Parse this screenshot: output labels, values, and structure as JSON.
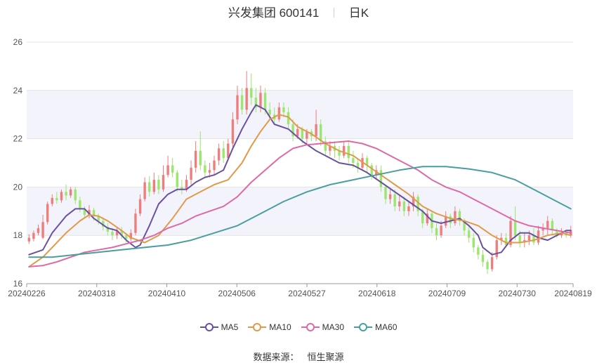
{
  "header": {
    "title": "兴发集团 600141",
    "period": "日K"
  },
  "source": {
    "label": "数据来源：",
    "value": "恒生聚源"
  },
  "colors": {
    "up": "#ee7d7d",
    "down": "#9ae66e",
    "band": "#f3f4fb",
    "grid": "#e4e4e4"
  },
  "chart_data": {
    "type": "candlestick",
    "ylim": [
      16,
      26
    ],
    "yticks": [
      "16",
      "18",
      "20",
      "22",
      "24",
      "26"
    ],
    "xticks": [
      "20240226",
      "20240318",
      "20240410",
      "20240506",
      "20240527",
      "20240618",
      "20240709",
      "20240730",
      "20240819"
    ],
    "n_days": 118,
    "xtick_idx": [
      0,
      15,
      30,
      45,
      60,
      75,
      90,
      105,
      117
    ],
    "legend": [
      {
        "name": "MA5",
        "color": "#6a50a0"
      },
      {
        "name": "MA10",
        "color": "#e09a4a"
      },
      {
        "name": "MA30",
        "color": "#dc6aa6"
      },
      {
        "name": "MA60",
        "color": "#4a9e9e"
      }
    ],
    "candles": [
      [
        17.75,
        17.9,
        17.65,
        18.05
      ],
      [
        17.85,
        18.1,
        17.75,
        18.2
      ],
      [
        18.1,
        18.3,
        18.0,
        18.45
      ],
      [
        17.9,
        18.55,
        17.85,
        18.85
      ],
      [
        18.55,
        19.3,
        18.45,
        19.4
      ],
      [
        19.3,
        19.55,
        19.2,
        19.7
      ],
      [
        19.55,
        19.45,
        19.3,
        19.8
      ],
      [
        19.45,
        19.8,
        19.35,
        19.9
      ],
      [
        19.8,
        19.65,
        19.45,
        20.1
      ],
      [
        19.65,
        19.9,
        19.55,
        20.0
      ],
      [
        19.9,
        19.45,
        19.3,
        20.0
      ],
      [
        19.45,
        19.1,
        18.95,
        19.6
      ],
      [
        19.1,
        18.85,
        18.75,
        19.2
      ],
      [
        18.85,
        19.05,
        18.7,
        19.25
      ],
      [
        19.05,
        18.8,
        18.6,
        19.15
      ],
      [
        18.8,
        18.6,
        18.45,
        18.9
      ],
      [
        18.6,
        18.35,
        18.2,
        18.75
      ],
      [
        18.35,
        18.15,
        18.0,
        18.5
      ],
      [
        18.15,
        18.0,
        17.8,
        18.3
      ],
      [
        18.0,
        18.2,
        17.85,
        18.35
      ],
      [
        18.2,
        18.0,
        17.85,
        18.35
      ],
      [
        18.0,
        17.85,
        17.7,
        18.1
      ],
      [
        17.85,
        18.1,
        17.75,
        18.25
      ],
      [
        18.1,
        18.9,
        18.0,
        19.1
      ],
      [
        18.9,
        19.5,
        18.8,
        19.7
      ],
      [
        19.5,
        20.2,
        19.4,
        20.4
      ],
      [
        20.2,
        19.8,
        19.6,
        20.45
      ],
      [
        19.8,
        20.3,
        19.7,
        20.6
      ],
      [
        20.3,
        19.9,
        19.7,
        20.5
      ],
      [
        19.9,
        20.5,
        19.8,
        20.9
      ],
      [
        20.5,
        20.9,
        20.4,
        21.3
      ],
      [
        20.9,
        20.6,
        20.4,
        21.2
      ],
      [
        20.6,
        20.0,
        19.8,
        20.7
      ],
      [
        20.0,
        19.9,
        19.7,
        20.3
      ],
      [
        19.9,
        20.3,
        19.8,
        20.5
      ],
      [
        20.3,
        20.8,
        20.1,
        21.1
      ],
      [
        20.8,
        21.5,
        20.6,
        21.9
      ],
      [
        21.5,
        20.9,
        20.7,
        22.3
      ],
      [
        20.9,
        20.6,
        20.4,
        21.1
      ],
      [
        20.6,
        20.7,
        20.4,
        21.0
      ],
      [
        20.7,
        21.1,
        20.5,
        21.3
      ],
      [
        21.1,
        21.6,
        20.9,
        21.8
      ],
      [
        21.6,
        21.2,
        21.0,
        21.9
      ],
      [
        21.2,
        21.8,
        21.1,
        22.0
      ],
      [
        21.8,
        22.8,
        21.6,
        23.1
      ],
      [
        22.8,
        23.8,
        22.6,
        24.2
      ],
      [
        23.8,
        23.2,
        23.0,
        24.1
      ],
      [
        23.2,
        24.1,
        23.0,
        24.8
      ],
      [
        24.1,
        23.7,
        23.4,
        24.7
      ],
      [
        23.7,
        23.3,
        23.1,
        24.1
      ],
      [
        23.3,
        23.9,
        23.1,
        24.2
      ],
      [
        23.9,
        23.2,
        23.0,
        24.1
      ],
      [
        23.2,
        23.0,
        22.8,
        23.5
      ],
      [
        23.0,
        22.8,
        22.6,
        23.3
      ],
      [
        22.8,
        23.3,
        22.7,
        23.5
      ],
      [
        23.3,
        23.1,
        22.9,
        23.5
      ],
      [
        23.1,
        22.6,
        22.4,
        23.3
      ],
      [
        22.6,
        22.1,
        21.9,
        22.8
      ],
      [
        22.1,
        22.4,
        22.0,
        22.6
      ],
      [
        22.4,
        22.0,
        21.8,
        22.5
      ],
      [
        22.0,
        22.3,
        21.8,
        22.4
      ],
      [
        22.3,
        22.1,
        21.9,
        22.4
      ],
      [
        22.1,
        22.6,
        21.9,
        23.2
      ],
      [
        22.6,
        21.9,
        21.7,
        22.8
      ],
      [
        21.9,
        21.5,
        21.3,
        22.1
      ],
      [
        21.5,
        21.7,
        21.3,
        21.9
      ],
      [
        21.7,
        21.5,
        21.2,
        21.9
      ],
      [
        21.5,
        21.3,
        21.1,
        21.7
      ],
      [
        21.3,
        21.7,
        21.2,
        21.9
      ],
      [
        21.7,
        21.2,
        21.0,
        21.9
      ],
      [
        21.2,
        21.0,
        20.8,
        21.5
      ],
      [
        21.0,
        20.8,
        20.6,
        21.2
      ],
      [
        20.8,
        21.2,
        20.7,
        21.4
      ],
      [
        21.2,
        20.9,
        20.6,
        21.3
      ],
      [
        20.9,
        20.5,
        20.3,
        21.0
      ],
      [
        20.5,
        20.7,
        20.3,
        20.9
      ],
      [
        20.7,
        20.0,
        19.8,
        20.9
      ],
      [
        20.0,
        19.5,
        19.3,
        20.1
      ],
      [
        19.5,
        19.7,
        19.3,
        19.9
      ],
      [
        19.7,
        19.2,
        19.0,
        19.9
      ],
      [
        19.2,
        19.4,
        19.0,
        19.7
      ],
      [
        19.4,
        19.0,
        18.8,
        19.6
      ],
      [
        19.0,
        19.2,
        18.8,
        19.4
      ],
      [
        19.2,
        19.6,
        19.0,
        19.8
      ],
      [
        19.6,
        19.0,
        18.8,
        19.7
      ],
      [
        19.0,
        18.5,
        18.3,
        19.1
      ],
      [
        18.5,
        18.9,
        18.4,
        19.1
      ],
      [
        18.9,
        18.3,
        18.1,
        19.0
      ],
      [
        18.3,
        18.0,
        17.8,
        18.5
      ],
      [
        18.0,
        18.4,
        17.9,
        18.6
      ],
      [
        18.4,
        18.8,
        18.3,
        19.0
      ],
      [
        18.8,
        18.5,
        18.3,
        18.9
      ],
      [
        18.5,
        19.0,
        18.4,
        19.2
      ],
      [
        19.0,
        18.6,
        18.4,
        19.1
      ],
      [
        18.6,
        18.2,
        18.0,
        18.7
      ],
      [
        18.2,
        17.9,
        17.7,
        18.4
      ],
      [
        17.9,
        17.5,
        17.3,
        18.1
      ],
      [
        17.5,
        17.2,
        17.0,
        17.6
      ],
      [
        17.2,
        16.9,
        16.7,
        17.4
      ],
      [
        16.9,
        16.6,
        16.4,
        17.0
      ],
      [
        16.6,
        17.1,
        16.5,
        17.3
      ],
      [
        17.1,
        17.8,
        17.0,
        18.0
      ],
      [
        17.8,
        17.9,
        17.6,
        18.1
      ],
      [
        17.9,
        17.6,
        17.5,
        18.1
      ],
      [
        17.6,
        18.6,
        17.5,
        18.8
      ],
      [
        18.6,
        18.0,
        17.8,
        19.2
      ],
      [
        18.0,
        17.7,
        17.5,
        18.2
      ],
      [
        17.7,
        17.8,
        17.5,
        18.1
      ],
      [
        17.8,
        18.0,
        17.6,
        18.2
      ],
      [
        18.0,
        17.7,
        17.6,
        18.3
      ],
      [
        17.7,
        18.2,
        17.6,
        18.4
      ],
      [
        18.2,
        18.3,
        18.0,
        18.5
      ],
      [
        18.3,
        18.6,
        18.0,
        18.8
      ],
      [
        18.6,
        18.2,
        18.0,
        18.7
      ],
      [
        18.2,
        18.0,
        17.9,
        18.3
      ],
      [
        18.0,
        18.1,
        17.9,
        18.3
      ],
      [
        18.1,
        18.0,
        17.9,
        18.2
      ],
      [
        18.0,
        18.2,
        17.9,
        18.4
      ]
    ],
    "ma5": [
      [
        0,
        17.2
      ],
      [
        3,
        17.4
      ],
      [
        5,
        18.1
      ],
      [
        8,
        18.8
      ],
      [
        10,
        19.1
      ],
      [
        12,
        19.1
      ],
      [
        14,
        18.7
      ],
      [
        17,
        18.3
      ],
      [
        19,
        18.2
      ],
      [
        21,
        17.8
      ],
      [
        23,
        17.5
      ],
      [
        24,
        17.6
      ],
      [
        26,
        18.4
      ],
      [
        28,
        19.3
      ],
      [
        30,
        19.7
      ],
      [
        32,
        19.9
      ],
      [
        34,
        19.9
      ],
      [
        36,
        20.2
      ],
      [
        38,
        20.4
      ],
      [
        40,
        20.5
      ],
      [
        42,
        20.7
      ],
      [
        44,
        21.6
      ],
      [
        46,
        22.4
      ],
      [
        48,
        23.1
      ],
      [
        49,
        23.4
      ],
      [
        51,
        23.2
      ],
      [
        53,
        22.6
      ],
      [
        56,
        22.4
      ],
      [
        59,
        21.9
      ],
      [
        62,
        21.5
      ],
      [
        65,
        21.2
      ],
      [
        67,
        21.0
      ],
      [
        70,
        20.9
      ],
      [
        73,
        20.6
      ],
      [
        76,
        20.2
      ],
      [
        79,
        19.8
      ],
      [
        82,
        19.4
      ],
      [
        85,
        19.0
      ],
      [
        87,
        18.6
      ],
      [
        89,
        18.5
      ],
      [
        91,
        18.6
      ],
      [
        93,
        18.7
      ],
      [
        95,
        18.4
      ],
      [
        97,
        18.0
      ],
      [
        98,
        17.5
      ],
      [
        100,
        17.2
      ],
      [
        102,
        17.3
      ],
      [
        104,
        17.8
      ],
      [
        106,
        18.1
      ],
      [
        108,
        18.1
      ],
      [
        110,
        17.9
      ],
      [
        112,
        17.8
      ],
      [
        114,
        18.0
      ],
      [
        116,
        18.2
      ],
      [
        117,
        18.2
      ]
    ],
    "ma10": [
      [
        0,
        16.7
      ],
      [
        3,
        17.1
      ],
      [
        5,
        17.5
      ],
      [
        8,
        18.1
      ],
      [
        11,
        18.6
      ],
      [
        13,
        18.85
      ],
      [
        15,
        18.8
      ],
      [
        17,
        18.6
      ],
      [
        20,
        18.2
      ],
      [
        22,
        17.9
      ],
      [
        25,
        17.7
      ],
      [
        28,
        18.0
      ],
      [
        31,
        18.7
      ],
      [
        34,
        19.5
      ],
      [
        37,
        19.8
      ],
      [
        40,
        20.1
      ],
      [
        43,
        20.3
      ],
      [
        46,
        21.0
      ],
      [
        48,
        21.7
      ],
      [
        50,
        22.3
      ],
      [
        52,
        22.8
      ],
      [
        54,
        23.0
      ],
      [
        56,
        22.9
      ],
      [
        58,
        22.5
      ],
      [
        61,
        22.2
      ],
      [
        64,
        21.8
      ],
      [
        67,
        21.5
      ],
      [
        70,
        21.3
      ],
      [
        73,
        20.9
      ],
      [
        76,
        20.5
      ],
      [
        79,
        20.1
      ],
      [
        82,
        19.7
      ],
      [
        85,
        19.2
      ],
      [
        88,
        18.9
      ],
      [
        91,
        18.7
      ],
      [
        94,
        18.6
      ],
      [
        97,
        18.4
      ],
      [
        100,
        18.0
      ],
      [
        103,
        17.7
      ],
      [
        106,
        17.7
      ],
      [
        109,
        17.8
      ],
      [
        112,
        18.0
      ],
      [
        115,
        18.1
      ],
      [
        117,
        18.0
      ]
    ],
    "ma30": [
      [
        0,
        16.7
      ],
      [
        3,
        16.75
      ],
      [
        6,
        16.9
      ],
      [
        9,
        17.1
      ],
      [
        12,
        17.3
      ],
      [
        15,
        17.4
      ],
      [
        18,
        17.5
      ],
      [
        21,
        17.65
      ],
      [
        24,
        17.8
      ],
      [
        27,
        18.0
      ],
      [
        30,
        18.3
      ],
      [
        33,
        18.5
      ],
      [
        36,
        18.8
      ],
      [
        39,
        19.0
      ],
      [
        42,
        19.2
      ],
      [
        45,
        19.6
      ],
      [
        48,
        20.2
      ],
      [
        51,
        20.7
      ],
      [
        54,
        21.2
      ],
      [
        57,
        21.6
      ],
      [
        60,
        21.75
      ],
      [
        63,
        21.8
      ],
      [
        66,
        21.85
      ],
      [
        69,
        21.9
      ],
      [
        72,
        21.8
      ],
      [
        75,
        21.6
      ],
      [
        78,
        21.3
      ],
      [
        81,
        21.0
      ],
      [
        84,
        20.7
      ],
      [
        87,
        20.3
      ],
      [
        90,
        20.0
      ],
      [
        93,
        19.8
      ],
      [
        96,
        19.5
      ],
      [
        99,
        19.2
      ],
      [
        102,
        18.9
      ],
      [
        105,
        18.6
      ],
      [
        108,
        18.4
      ],
      [
        111,
        18.3
      ],
      [
        114,
        18.2
      ],
      [
        117,
        18.1
      ]
    ],
    "ma60": [
      [
        0,
        17.1
      ],
      [
        5,
        17.1
      ],
      [
        10,
        17.2
      ],
      [
        15,
        17.3
      ],
      [
        20,
        17.4
      ],
      [
        25,
        17.5
      ],
      [
        30,
        17.6
      ],
      [
        35,
        17.8
      ],
      [
        40,
        18.1
      ],
      [
        45,
        18.4
      ],
      [
        50,
        18.9
      ],
      [
        55,
        19.4
      ],
      [
        60,
        19.8
      ],
      [
        65,
        20.1
      ],
      [
        70,
        20.3
      ],
      [
        75,
        20.5
      ],
      [
        80,
        20.7
      ],
      [
        85,
        20.85
      ],
      [
        90,
        20.85
      ],
      [
        95,
        20.75
      ],
      [
        100,
        20.6
      ],
      [
        105,
        20.3
      ],
      [
        110,
        19.8
      ],
      [
        115,
        19.3
      ],
      [
        117,
        19.1
      ]
    ]
  }
}
